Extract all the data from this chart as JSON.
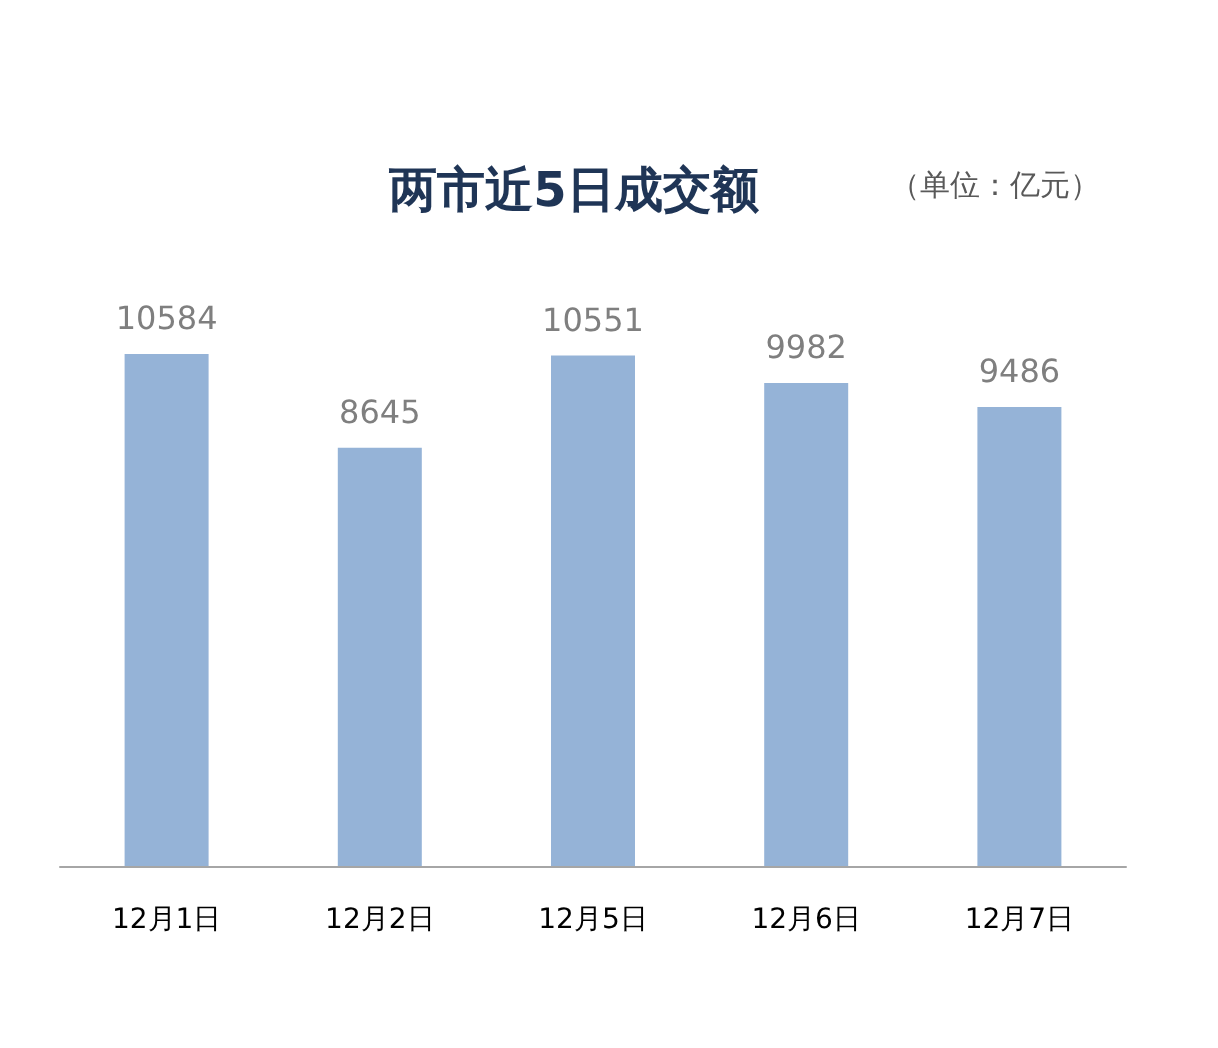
{
  "chart_data": {
    "type": "bar",
    "title": "两市近5日成交额",
    "subtitle": "（单位：亿元）",
    "categories": [
      "12月1日",
      "12月2日",
      "12月5日",
      "12月6日",
      "12月7日"
    ],
    "values": [
      10584,
      8645,
      10551,
      9982,
      9486
    ],
    "color": "#95b3d7",
    "data_labels": true
  }
}
